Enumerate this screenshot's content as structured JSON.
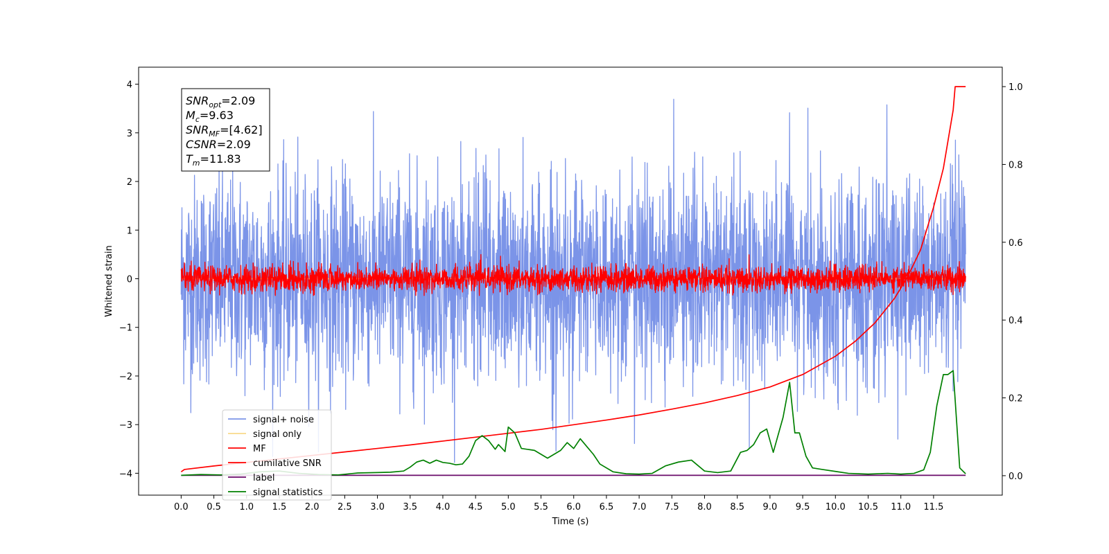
{
  "chart_data": {
    "type": "line",
    "title": "",
    "xlabel": "Time (s)",
    "ylabel": "Whitened strain",
    "xlim": [
      -0.65,
      12.55
    ],
    "ylim": [
      -4.45,
      4.35
    ],
    "y2lim": [
      -0.05,
      1.05
    ],
    "x_ticks": [
      0.0,
      0.5,
      1.0,
      1.5,
      2.0,
      2.5,
      3.0,
      3.5,
      4.0,
      4.5,
      5.0,
      5.5,
      6.0,
      6.5,
      7.0,
      7.5,
      8.0,
      8.5,
      9.0,
      9.5,
      10.0,
      10.5,
      11.0,
      11.5
    ],
    "x_tick_labels": [
      "0.0",
      "0.5",
      "1.0",
      "1.5",
      "2.0",
      "2.5",
      "3.0",
      "3.5",
      "4.0",
      "4.5",
      "5.0",
      "5.5",
      "6.0",
      "6.5",
      "7.0",
      "7.5",
      "8.0",
      "8.5",
      "9.0",
      "9.5",
      "10.0",
      "10.5",
      "11.0",
      "11.5"
    ],
    "y_ticks": [
      -4,
      -3,
      -2,
      -1,
      0,
      1,
      2,
      3,
      4
    ],
    "y_tick_labels": [
      "−4",
      "−3",
      "−2",
      "−1",
      "0",
      "1",
      "2",
      "3",
      "4"
    ],
    "y2_ticks": [
      0.0,
      0.2,
      0.4,
      0.6,
      0.8,
      1.0
    ],
    "y2_tick_labels": [
      "0.0",
      "0.2",
      "0.4",
      "0.6",
      "0.8",
      "1.0"
    ],
    "grid": false,
    "legend_position": "lower-left",
    "info_box": {
      "snr_opt": {
        "sym": "SNR",
        "sub": "opt",
        "value": "=2.09"
      },
      "mc": {
        "sym": "M",
        "sub": "c",
        "value": "=9.63"
      },
      "snr_mf": {
        "sym": "SNR",
        "sub": "MF",
        "value": "=[4.62]"
      },
      "csnr": {
        "sym": "CSNR",
        "sub": "",
        "value": "=2.09"
      },
      "tm": {
        "sym": "T",
        "sub": "m",
        "value": "=11.83"
      }
    },
    "series": [
      {
        "name": "signal+ noise",
        "color": "#7b94e8",
        "axis": "left",
        "kind": "noise",
        "x_range": [
          0,
          11.99
        ],
        "amplitude": 1.05,
        "peak_max": 3.95,
        "peak_min": -3.9
      },
      {
        "name": "signal only",
        "color": "#f8d98a",
        "axis": "left",
        "kind": "flat",
        "x": [
          0,
          11.99
        ],
        "y": [
          0,
          0
        ]
      },
      {
        "name": "MF",
        "color": "#ff0000",
        "axis": "left",
        "kind": "noise",
        "x_range": [
          0,
          11.99
        ],
        "amplitude": 0.13,
        "peak_max": 1.0,
        "peak_min": -0.35
      },
      {
        "name": "cumilative SNR",
        "color": "#ff0000",
        "axis": "right",
        "kind": "line",
        "x": [
          0.0,
          0.05,
          0.5,
          1.0,
          1.5,
          2.0,
          2.5,
          3.0,
          3.5,
          4.0,
          4.5,
          5.0,
          5.5,
          6.0,
          6.5,
          7.0,
          7.5,
          8.0,
          8.5,
          9.0,
          9.5,
          10.0,
          10.3,
          10.6,
          10.9,
          11.1,
          11.3,
          11.5,
          11.65,
          11.8,
          11.83,
          11.99
        ],
        "y": [
          0.01,
          0.016,
          0.025,
          0.034,
          0.043,
          0.052,
          0.061,
          0.07,
          0.079,
          0.089,
          0.099,
          0.109,
          0.119,
          0.131,
          0.143,
          0.156,
          0.171,
          0.187,
          0.206,
          0.228,
          0.26,
          0.307,
          0.345,
          0.392,
          0.455,
          0.51,
          0.58,
          0.69,
          0.79,
          0.94,
          1.0,
          1.0
        ]
      },
      {
        "name": "label",
        "color": "#6a0a6a",
        "axis": "right",
        "kind": "flat",
        "x": [
          0,
          11.99
        ],
        "y": [
          0.001,
          0.001
        ]
      },
      {
        "name": "signal statistics",
        "color": "#008000",
        "axis": "right",
        "kind": "line",
        "x": [
          0.0,
          0.3,
          0.6,
          0.9,
          1.2,
          1.5,
          1.8,
          2.1,
          2.4,
          2.7,
          3.0,
          3.2,
          3.4,
          3.5,
          3.6,
          3.7,
          3.8,
          3.9,
          4.0,
          4.1,
          4.2,
          4.3,
          4.4,
          4.5,
          4.6,
          4.7,
          4.8,
          4.85,
          4.95,
          5.0,
          5.1,
          5.2,
          5.4,
          5.6,
          5.8,
          5.9,
          6.0,
          6.1,
          6.2,
          6.3,
          6.4,
          6.6,
          6.8,
          7.0,
          7.2,
          7.4,
          7.6,
          7.8,
          8.0,
          8.2,
          8.4,
          8.55,
          8.65,
          8.75,
          8.85,
          8.95,
          9.05,
          9.2,
          9.3,
          9.38,
          9.45,
          9.55,
          9.65,
          9.8,
          10.0,
          10.2,
          10.5,
          10.8,
          11.0,
          11.2,
          11.35,
          11.45,
          11.55,
          11.65,
          11.72,
          11.8,
          11.9,
          11.99
        ],
        "y": [
          0.001,
          0.003,
          0.002,
          0.004,
          0.01,
          0.012,
          0.006,
          0.003,
          0.002,
          0.007,
          0.008,
          0.009,
          0.012,
          0.022,
          0.035,
          0.04,
          0.032,
          0.04,
          0.034,
          0.032,
          0.028,
          0.03,
          0.05,
          0.09,
          0.103,
          0.09,
          0.068,
          0.08,
          0.062,
          0.125,
          0.11,
          0.07,
          0.065,
          0.045,
          0.065,
          0.085,
          0.07,
          0.095,
          0.075,
          0.055,
          0.03,
          0.01,
          0.005,
          0.004,
          0.006,
          0.025,
          0.035,
          0.04,
          0.012,
          0.008,
          0.012,
          0.06,
          0.065,
          0.08,
          0.11,
          0.12,
          0.06,
          0.15,
          0.24,
          0.11,
          0.11,
          0.05,
          0.02,
          0.016,
          0.011,
          0.006,
          0.004,
          0.006,
          0.004,
          0.006,
          0.015,
          0.06,
          0.18,
          0.26,
          0.26,
          0.27,
          0.02,
          0.005
        ]
      }
    ]
  }
}
